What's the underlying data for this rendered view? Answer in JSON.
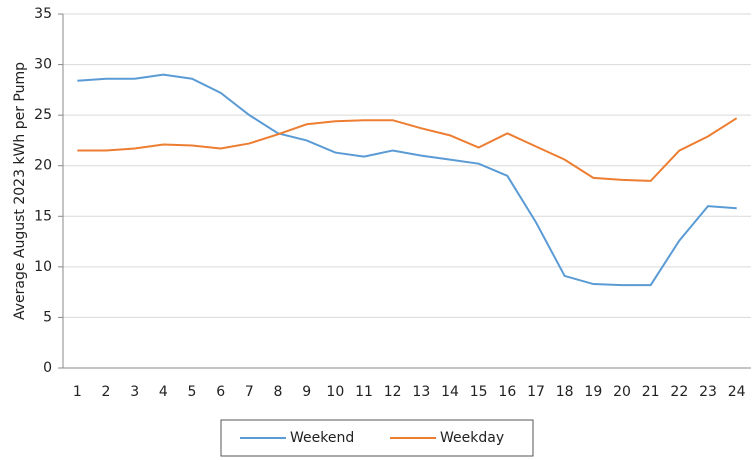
{
  "chart_data": {
    "type": "line",
    "y_label": "Average August 2023 kWh per Pump",
    "categories": [
      "1",
      "2",
      "3",
      "4",
      "5",
      "6",
      "7",
      "8",
      "9",
      "10",
      "11",
      "12",
      "13",
      "14",
      "15",
      "16",
      "17",
      "18",
      "19",
      "20",
      "21",
      "22",
      "23",
      "24"
    ],
    "series": [
      {
        "name": "Weekend",
        "color": "#5b9bd5",
        "values": [
          28.4,
          28.6,
          28.6,
          29.0,
          28.6,
          27.2,
          25.0,
          23.2,
          22.5,
          21.3,
          20.9,
          21.5,
          21.0,
          20.6,
          20.2,
          19.0,
          14.4,
          9.1,
          8.3,
          8.2,
          8.2,
          12.6,
          16.0,
          15.8
        ]
      },
      {
        "name": "Weekday",
        "color": "#ed7d31",
        "values": [
          21.5,
          21.5,
          21.7,
          22.1,
          22.0,
          21.7,
          22.2,
          23.1,
          24.1,
          24.4,
          24.5,
          24.5,
          23.7,
          23.0,
          21.8,
          23.2,
          21.9,
          20.6,
          18.8,
          18.6,
          18.5,
          21.5,
          22.9,
          24.7
        ]
      }
    ],
    "ylim": [
      0,
      35
    ],
    "yticks": [
      0,
      5,
      10,
      15,
      20,
      25,
      30,
      35
    ],
    "grid": true,
    "legend": "bottom"
  }
}
